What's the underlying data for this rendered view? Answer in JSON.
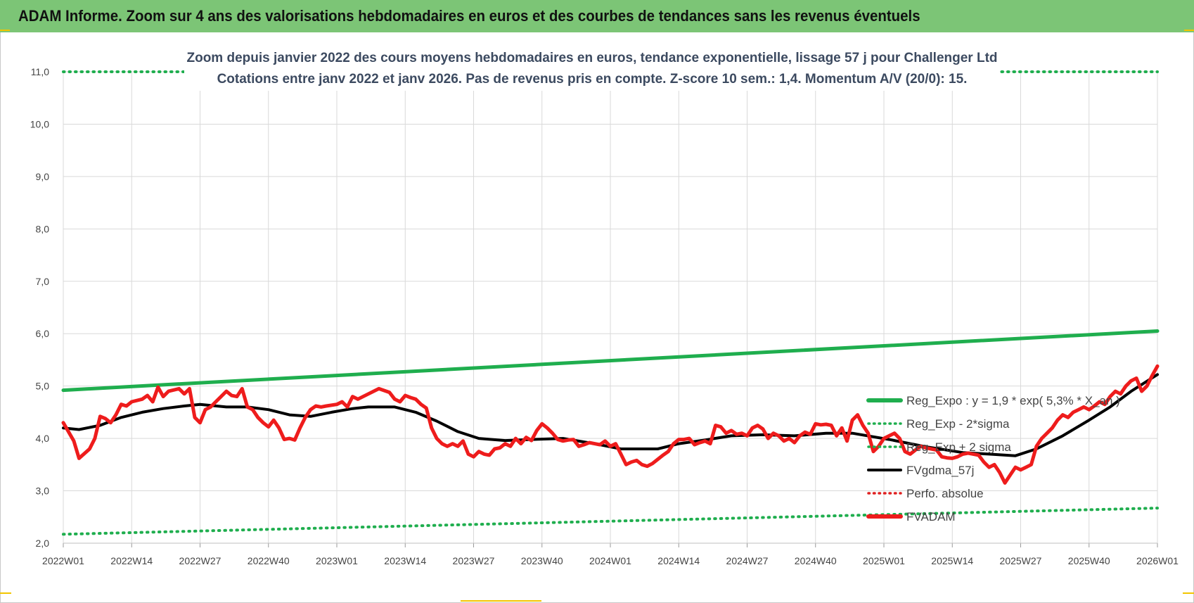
{
  "banner": {
    "title": "ADAM Informe. Zoom sur 4 ans des valorisations hebdomadaires en euros et des courbes de tendances sans les revenus éventuels"
  },
  "colors": {
    "reg_expo": "#1fae4e",
    "reg_bands": "#1fae4e",
    "fvgdma": "#000000",
    "perfo": "#e02020",
    "fvadam": "#ee1c1c",
    "grid": "#d9d9d9",
    "banner": "#7cc576"
  },
  "chart_data": {
    "type": "line",
    "title": "Zoom depuis janvier 2022 des cours moyens hebdomadaires en euros, tendance exponentielle, lissage 57 j pour Challenger Ltd",
    "subtitle": "Cotations entre janv 2022 et janv 2026. Pas de revenus pris en compte. Z-score 10 sem.: 1,4. Momentum A/V (20/0): 15.",
    "ylim": [
      2.0,
      11.0
    ],
    "yticks": [
      "2,0",
      "3,0",
      "4,0",
      "5,0",
      "6,0",
      "7,0",
      "8,0",
      "9,0",
      "10,0",
      "11,0"
    ],
    "xticks": [
      "2022W01",
      "2022W14",
      "2022W27",
      "2022W40",
      "2023W01",
      "2023W14",
      "2023W27",
      "2023W40",
      "2024W01",
      "2024W14",
      "2024W27",
      "2024W40",
      "2025W01",
      "2025W14",
      "2025W27",
      "2025W40",
      "2026W01"
    ],
    "x_range_weeks": [
      0,
      208
    ],
    "legend_position": "bottom-right",
    "legend": [
      {
        "label": "Reg_Expo : y = 1,9 * exp( 5,3% * X_an )",
        "style": "solid-thick",
        "colorKey": "reg_expo"
      },
      {
        "label": "Reg_Exp - 2*sigma",
        "style": "dotted",
        "colorKey": "reg_bands"
      },
      {
        "label": "Reg_Exp + 2 sigma",
        "style": "dotted",
        "colorKey": "reg_bands"
      },
      {
        "label": "FVgdma_57j",
        "style": "solid",
        "colorKey": "fvgdma"
      },
      {
        "label": "Perfo. absolue",
        "style": "dotted",
        "colorKey": "perfo"
      },
      {
        "label": "FVADAM",
        "style": "solid-thick",
        "colorKey": "fvadam"
      }
    ],
    "series": [
      {
        "name": "Reg_Expo : y = 1,9 * exp( 5,3% * X_an )",
        "colorKey": "reg_expo",
        "points": [
          [
            0,
            4.92
          ],
          [
            208,
            6.05
          ]
        ]
      },
      {
        "name": "Reg_Exp - 2*sigma",
        "colorKey": "reg_bands",
        "points": [
          [
            0,
            2.17
          ],
          [
            208,
            2.67
          ]
        ]
      },
      {
        "name": "Reg_Exp + 2 sigma",
        "colorKey": "reg_bands",
        "points": [
          [
            0,
            11.0
          ],
          [
            208,
            11.0
          ]
        ]
      },
      {
        "name": "FVgdma_57j",
        "colorKey": "fvgdma",
        "points": [
          [
            0,
            4.2
          ],
          [
            3,
            4.17
          ],
          [
            7,
            4.25
          ],
          [
            11,
            4.4
          ],
          [
            15,
            4.5
          ],
          [
            19,
            4.57
          ],
          [
            23,
            4.62
          ],
          [
            26,
            4.65
          ],
          [
            31,
            4.6
          ],
          [
            35,
            4.6
          ],
          [
            39,
            4.55
          ],
          [
            43,
            4.45
          ],
          [
            47,
            4.42
          ],
          [
            51,
            4.5
          ],
          [
            55,
            4.57
          ],
          [
            58,
            4.6
          ],
          [
            63,
            4.6
          ],
          [
            67,
            4.5
          ],
          [
            71,
            4.33
          ],
          [
            75,
            4.13
          ],
          [
            79,
            4.0
          ],
          [
            84,
            3.96
          ],
          [
            89,
            3.98
          ],
          [
            95,
            4.0
          ],
          [
            101,
            3.9
          ],
          [
            106,
            3.8
          ],
          [
            113,
            3.8
          ],
          [
            117,
            3.9
          ],
          [
            122,
            3.97
          ],
          [
            127,
            4.05
          ],
          [
            133,
            4.07
          ],
          [
            139,
            4.05
          ],
          [
            145,
            4.1
          ],
          [
            150,
            4.1
          ],
          [
            157,
            3.98
          ],
          [
            164,
            3.84
          ],
          [
            171,
            3.73
          ],
          [
            176,
            3.7
          ],
          [
            181,
            3.67
          ],
          [
            185,
            3.8
          ],
          [
            190,
            4.05
          ],
          [
            195,
            4.35
          ],
          [
            199,
            4.6
          ],
          [
            203,
            4.9
          ],
          [
            208,
            5.22
          ]
        ]
      },
      {
        "name": "FVADAM",
        "colorKey": "fvadam",
        "points": [
          [
            0,
            4.3
          ],
          [
            2,
            3.95
          ],
          [
            3,
            3.62
          ],
          [
            5,
            3.8
          ],
          [
            6,
            4.0
          ],
          [
            7,
            4.42
          ],
          [
            8,
            4.38
          ],
          [
            9,
            4.3
          ],
          [
            10,
            4.45
          ],
          [
            11,
            4.65
          ],
          [
            12,
            4.62
          ],
          [
            13,
            4.7
          ],
          [
            15,
            4.75
          ],
          [
            16,
            4.82
          ],
          [
            17,
            4.7
          ],
          [
            18,
            4.98
          ],
          [
            19,
            4.8
          ],
          [
            20,
            4.9
          ],
          [
            22,
            4.95
          ],
          [
            23,
            4.85
          ],
          [
            24,
            4.95
          ],
          [
            25,
            4.4
          ],
          [
            26,
            4.3
          ],
          [
            27,
            4.55
          ],
          [
            28,
            4.6
          ],
          [
            29,
            4.7
          ],
          [
            31,
            4.9
          ],
          [
            32,
            4.82
          ],
          [
            33,
            4.8
          ],
          [
            34,
            4.95
          ],
          [
            35,
            4.6
          ],
          [
            36,
            4.55
          ],
          [
            37,
            4.4
          ],
          [
            38,
            4.3
          ],
          [
            39,
            4.22
          ],
          [
            40,
            4.35
          ],
          [
            41,
            4.2
          ],
          [
            42,
            3.98
          ],
          [
            43,
            4.0
          ],
          [
            44,
            3.97
          ],
          [
            45,
            4.2
          ],
          [
            46,
            4.4
          ],
          [
            47,
            4.55
          ],
          [
            48,
            4.62
          ],
          [
            49,
            4.6
          ],
          [
            50,
            4.62
          ],
          [
            52,
            4.65
          ],
          [
            53,
            4.7
          ],
          [
            54,
            4.6
          ],
          [
            55,
            4.8
          ],
          [
            56,
            4.75
          ],
          [
            58,
            4.85
          ],
          [
            60,
            4.95
          ],
          [
            62,
            4.88
          ],
          [
            63,
            4.75
          ],
          [
            64,
            4.7
          ],
          [
            65,
            4.82
          ],
          [
            66,
            4.78
          ],
          [
            67,
            4.75
          ],
          [
            68,
            4.65
          ],
          [
            69,
            4.58
          ],
          [
            70,
            4.2
          ],
          [
            71,
            4.0
          ],
          [
            72,
            3.9
          ],
          [
            73,
            3.85
          ],
          [
            74,
            3.9
          ],
          [
            75,
            3.85
          ],
          [
            76,
            3.95
          ],
          [
            77,
            3.7
          ],
          [
            78,
            3.65
          ],
          [
            79,
            3.75
          ],
          [
            80,
            3.7
          ],
          [
            81,
            3.68
          ],
          [
            82,
            3.8
          ],
          [
            83,
            3.82
          ],
          [
            84,
            3.9
          ],
          [
            85,
            3.85
          ],
          [
            86,
            4.0
          ],
          [
            87,
            3.9
          ],
          [
            88,
            4.02
          ],
          [
            89,
            3.96
          ],
          [
            90,
            4.15
          ],
          [
            91,
            4.28
          ],
          [
            92,
            4.2
          ],
          [
            93,
            4.1
          ],
          [
            94,
            3.98
          ],
          [
            95,
            3.95
          ],
          [
            96,
            3.97
          ],
          [
            97,
            3.98
          ],
          [
            98,
            3.85
          ],
          [
            99,
            3.88
          ],
          [
            100,
            3.92
          ],
          [
            101,
            3.9
          ],
          [
            102,
            3.88
          ],
          [
            103,
            3.95
          ],
          [
            104,
            3.85
          ],
          [
            105,
            3.9
          ],
          [
            106,
            3.7
          ],
          [
            107,
            3.5
          ],
          [
            108,
            3.55
          ],
          [
            109,
            3.58
          ],
          [
            110,
            3.5
          ],
          [
            111,
            3.47
          ],
          [
            112,
            3.52
          ],
          [
            113,
            3.6
          ],
          [
            114,
            3.68
          ],
          [
            115,
            3.75
          ],
          [
            116,
            3.9
          ],
          [
            117,
            3.98
          ],
          [
            118,
            3.98
          ],
          [
            119,
            4.0
          ],
          [
            120,
            3.88
          ],
          [
            121,
            3.92
          ],
          [
            122,
            3.95
          ],
          [
            123,
            3.9
          ],
          [
            124,
            4.25
          ],
          [
            125,
            4.22
          ],
          [
            126,
            4.1
          ],
          [
            127,
            4.15
          ],
          [
            128,
            4.08
          ],
          [
            129,
            4.1
          ],
          [
            130,
            4.05
          ],
          [
            131,
            4.2
          ],
          [
            132,
            4.25
          ],
          [
            133,
            4.18
          ],
          [
            134,
            4.0
          ],
          [
            135,
            4.1
          ],
          [
            136,
            4.05
          ],
          [
            137,
            3.95
          ],
          [
            138,
            4.0
          ],
          [
            139,
            3.92
          ],
          [
            140,
            4.05
          ],
          [
            141,
            4.12
          ],
          [
            142,
            4.08
          ],
          [
            143,
            4.28
          ],
          [
            144,
            4.26
          ],
          [
            145,
            4.27
          ],
          [
            146,
            4.25
          ],
          [
            147,
            4.05
          ],
          [
            148,
            4.2
          ],
          [
            149,
            3.95
          ],
          [
            150,
            4.35
          ],
          [
            151,
            4.45
          ],
          [
            152,
            4.25
          ],
          [
            153,
            4.1
          ],
          [
            154,
            3.75
          ],
          [
            155,
            3.85
          ],
          [
            156,
            4.0
          ],
          [
            157,
            4.05
          ],
          [
            158,
            4.1
          ],
          [
            159,
            4.0
          ],
          [
            160,
            3.75
          ],
          [
            161,
            3.7
          ],
          [
            162,
            3.78
          ],
          [
            163,
            3.85
          ],
          [
            164,
            3.82
          ],
          [
            165,
            3.8
          ],
          [
            166,
            3.78
          ],
          [
            167,
            3.65
          ],
          [
            168,
            3.63
          ],
          [
            169,
            3.62
          ],
          [
            170,
            3.65
          ],
          [
            171,
            3.7
          ],
          [
            172,
            3.72
          ],
          [
            173,
            3.7
          ],
          [
            174,
            3.68
          ],
          [
            175,
            3.55
          ],
          [
            176,
            3.45
          ],
          [
            177,
            3.5
          ],
          [
            178,
            3.35
          ],
          [
            179,
            3.15
          ],
          [
            180,
            3.3
          ],
          [
            181,
            3.45
          ],
          [
            182,
            3.4
          ],
          [
            183,
            3.45
          ],
          [
            184,
            3.5
          ],
          [
            185,
            3.85
          ],
          [
            186,
            4.0
          ],
          [
            187,
            4.1
          ],
          [
            188,
            4.2
          ],
          [
            189,
            4.35
          ],
          [
            190,
            4.45
          ],
          [
            191,
            4.4
          ],
          [
            192,
            4.5
          ],
          [
            193,
            4.55
          ],
          [
            194,
            4.6
          ],
          [
            195,
            4.55
          ],
          [
            196,
            4.62
          ],
          [
            197,
            4.7
          ],
          [
            198,
            4.65
          ],
          [
            199,
            4.8
          ],
          [
            200,
            4.9
          ],
          [
            201,
            4.85
          ],
          [
            202,
            5.0
          ],
          [
            203,
            5.1
          ],
          [
            204,
            5.15
          ],
          [
            205,
            4.9
          ],
          [
            206,
            5.0
          ],
          [
            207,
            5.2
          ],
          [
            208,
            5.38
          ]
        ]
      }
    ]
  }
}
